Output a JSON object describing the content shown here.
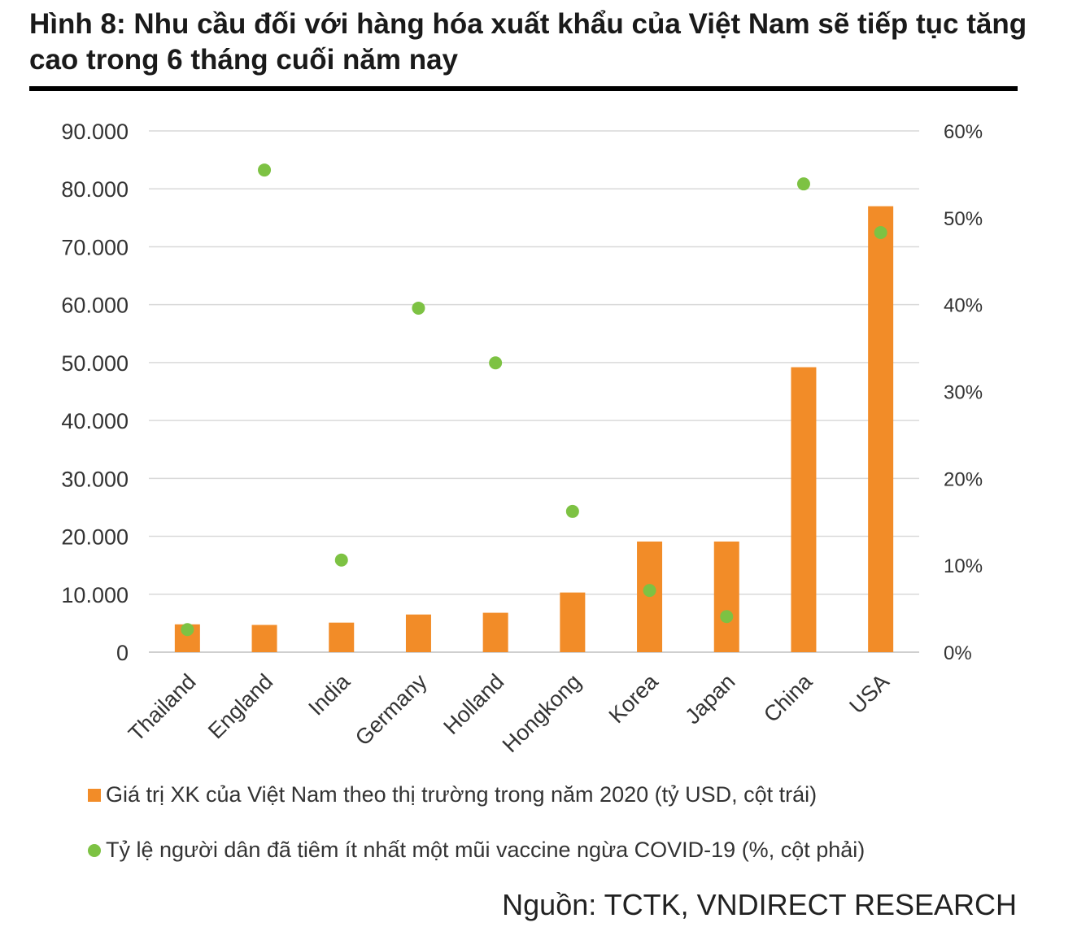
{
  "title": "Hình 8: Nhu cầu đối với hàng hóa xuất khẩu của Việt Nam sẽ tiếp tục tăng cao trong 6 tháng cuối năm nay",
  "source": "Nguồn: TCTK, VNDIRECT RESEARCH",
  "colors": {
    "bar": "#F28C28",
    "dot": "#7DC243",
    "grid": "#d9d9d9"
  },
  "chart_data": {
    "type": "bar",
    "categories": [
      "Thailand",
      "England",
      "India",
      "Germany",
      "Holland",
      "Hongkong",
      "Korea",
      "Japan",
      "China",
      "USA"
    ],
    "series": [
      {
        "name": "Giá trị XK của Việt Nam theo thị trường trong năm 2020 (tỷ USD, cột trái)",
        "type": "bar",
        "axis": "left",
        "values": [
          4800,
          4700,
          5100,
          6500,
          6800,
          10300,
          19100,
          19100,
          49200,
          77000
        ]
      },
      {
        "name": "Tỷ lệ người dân đã tiêm ít nhất một mũi vaccine ngừa COVID-19 (%, cột phải)",
        "type": "scatter",
        "axis": "right",
        "values": [
          2.6,
          55.5,
          10.6,
          39.6,
          33.3,
          16.2,
          7.1,
          4.1,
          53.9,
          48.3
        ]
      }
    ],
    "y_left": {
      "ylim": [
        0,
        90000
      ],
      "ticks": [
        "0",
        "10.000",
        "20.000",
        "30.000",
        "40.000",
        "50.000",
        "60.000",
        "70.000",
        "80.000",
        "90.000"
      ]
    },
    "y_right": {
      "ylim": [
        0,
        60
      ],
      "ticks": [
        "0%",
        "10%",
        "20%",
        "30%",
        "40%",
        "50%",
        "60%"
      ]
    },
    "grid": true,
    "legend_position": "bottom"
  }
}
